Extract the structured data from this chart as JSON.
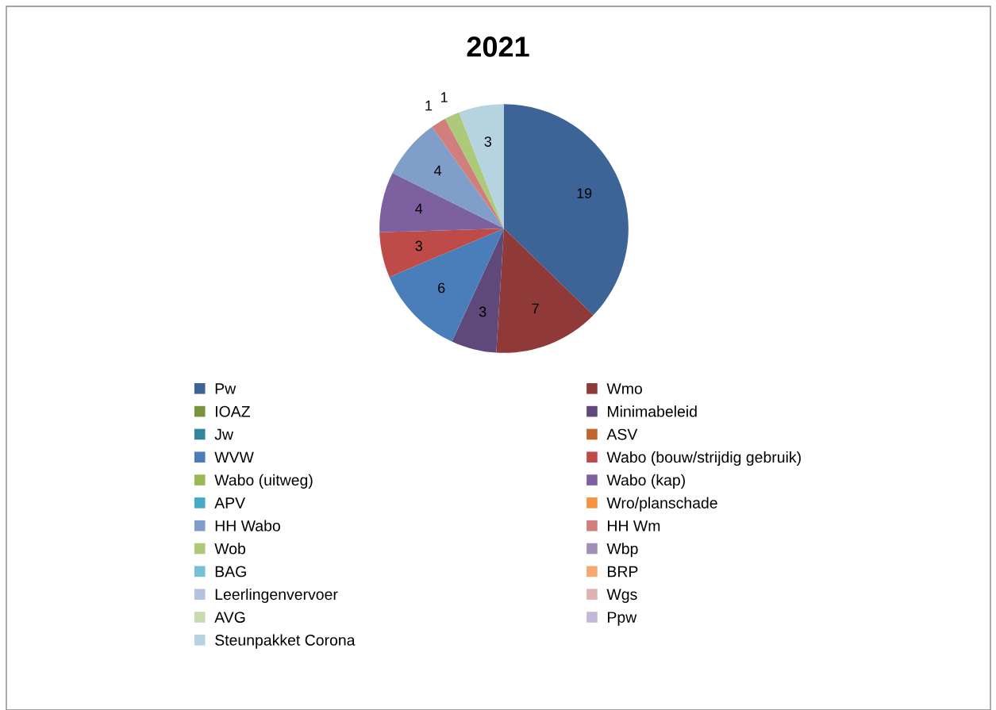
{
  "chart_data": {
    "type": "pie",
    "title": "2021",
    "categories": [
      "Pw",
      "Wmo",
      "IOAZ",
      "Minimabeleid",
      "Jw",
      "ASV",
      "WVW",
      "Wabo (bouw/strijdig gebruik)",
      "Wabo (uitweg)",
      "Wabo (kap)",
      "APV",
      "Wro/planschade",
      "HH Wabo",
      "HH Wm",
      "Wob",
      "Wbp",
      "BAG",
      "BRP",
      "Leerlingenvervoer",
      "Wgs",
      "AVG",
      "Ppw",
      "Steunpakket Corona"
    ],
    "values": [
      19,
      7,
      0,
      3,
      0,
      0,
      6,
      3,
      0,
      4,
      0,
      0,
      4,
      1,
      1,
      0,
      0,
      0,
      0,
      0,
      0,
      0,
      3
    ],
    "value_labels": [
      "19",
      "7",
      null,
      "3",
      null,
      null,
      "6",
      "3",
      null,
      "4",
      null,
      null,
      "4",
      "1",
      "1",
      null,
      null,
      null,
      null,
      null,
      null,
      null,
      "3"
    ],
    "colors": [
      "#3c6496",
      "#8f3a38",
      "#77933c",
      "#5f497a",
      "#31859c",
      "#c0662a",
      "#4a7ebb",
      "#be4b48",
      "#98b954",
      "#7d60a0",
      "#46aac5",
      "#f69240",
      "#7f9ec9",
      "#d07f7c",
      "#adc97a",
      "#a08fb8",
      "#76c0d3",
      "#f8a86f",
      "#b3c2dd",
      "#dfb3b1",
      "#c8dbb0",
      "#c3b8d5",
      "#b5d4e0"
    ],
    "legend": "bottom"
  }
}
